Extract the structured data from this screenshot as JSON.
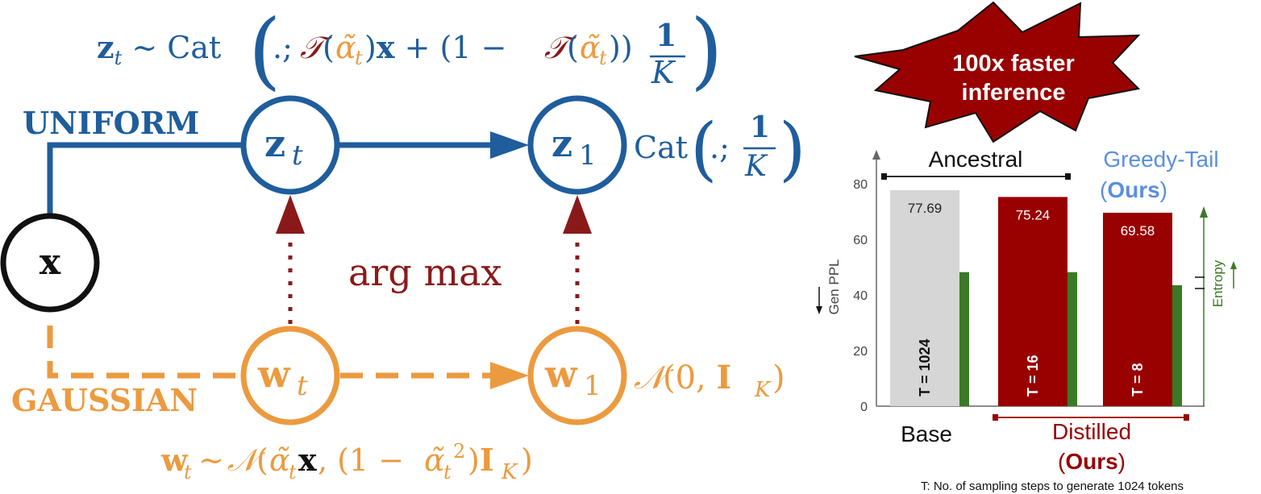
{
  "colors": {
    "uniform": "#1f5d9c",
    "gaussian": "#ec9a3f",
    "argmax": "#8a1a1a",
    "base_bar": "#d6d6d6",
    "distilled_bar": "#990000",
    "entropy_bar": "#3a7a26",
    "greedy_blue": "#5a8fe0",
    "x_node": "#111111"
  },
  "diagram": {
    "uniform_label": "UNIFORM",
    "gaussian_label": "GAUSSIAN",
    "argmax_label": "arg max",
    "node_x": "x",
    "node_zt": {
      "main": "z",
      "sub": "t"
    },
    "node_z1": {
      "main": "z",
      "sub": "1"
    },
    "node_wt": {
      "main": "w",
      "sub": "t"
    },
    "node_w1": {
      "main": "w",
      "sub": "1"
    },
    "formula_top": "z_t ~ Cat( .; T(α̃_t)x + (1 − T(α̃_t)) 1/K )",
    "formula_z1": "Cat( .; 1/K )",
    "formula_w1": "N(0, I_K)",
    "formula_bottom": "w_t ~ N(α̃_t x, (1 − α̃_t²) I_K)"
  },
  "callout": {
    "line1": "100x faster",
    "line2": "inference"
  },
  "chart_data": {
    "type": "bar",
    "categories": [
      "Base",
      "Distilled T=16",
      "Distilled T=8"
    ],
    "ylabel": "Gen PPL",
    "y2label": "Entropy",
    "ylim": [
      0,
      80
    ],
    "yticks": [
      0,
      20,
      40,
      60,
      80
    ],
    "series": [
      {
        "name": "Gen PPL",
        "values": [
          77.69,
          75.24,
          69.58
        ],
        "labels": [
          "77.69",
          "75.24",
          "69.58"
        ]
      },
      {
        "name": "Entropy",
        "values": [
          48.2,
          48.2,
          43.5
        ]
      }
    ],
    "step_labels": [
      "T = 1024",
      "T = 16",
      "T = 8"
    ],
    "ancestral_label": "Ancestral",
    "greedy_label": "Greedy-Tail",
    "ours_open": "(",
    "ours_bold": "Ours",
    "ours_close": ")",
    "base_label": "Base",
    "distilled_label": "Distilled",
    "footnote": "T: No. of sampling steps to generate 1024 tokens",
    "grid": false
  }
}
